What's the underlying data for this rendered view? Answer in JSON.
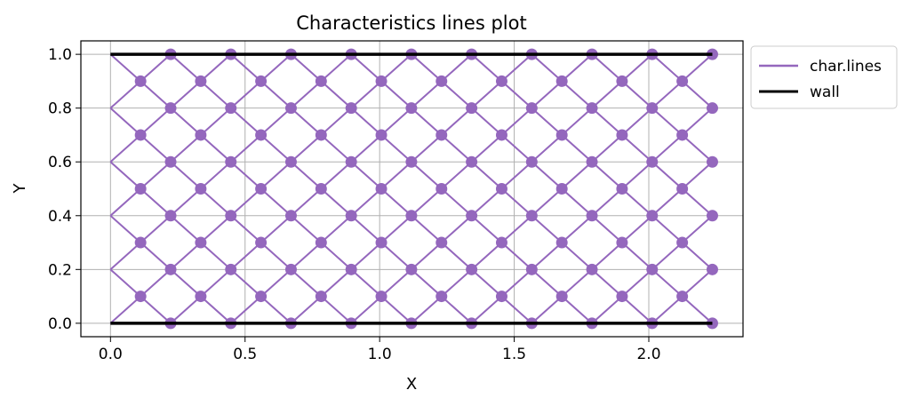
{
  "chart_data": {
    "type": "line",
    "title": "Characteristics lines plot",
    "xlabel": "X",
    "ylabel": "Y",
    "xlim": [
      -0.11,
      2.35
    ],
    "ylim": [
      -0.05,
      1.05
    ],
    "xticks": [
      0.0,
      0.5,
      1.0,
      1.5,
      2.0
    ],
    "xtick_labels": [
      "0.0",
      "0.5",
      "1.0",
      "1.5",
      "2.0"
    ],
    "yticks": [
      0.0,
      0.2,
      0.4,
      0.6,
      0.8,
      1.0
    ],
    "ytick_labels": [
      "0.0",
      "0.2",
      "0.4",
      "0.6",
      "0.8",
      "1.0"
    ],
    "grid": true,
    "legend": {
      "placement": "outside-top-right",
      "entries": [
        "char.lines",
        "wall"
      ]
    },
    "mesh": {
      "x_step": 0.1118,
      "y_step": 0.1,
      "columns": 21,
      "rows": 11,
      "note_pattern": "nodes where column index and row index have equal parity"
    },
    "series": [
      {
        "name": "char.lines",
        "color": "#9467bd",
        "marker": "circle"
      },
      {
        "name": "wall",
        "color": "#000000",
        "segments": [
          {
            "x": [
              0.0,
              2.236
            ],
            "y": [
              1.0,
              1.0
            ]
          },
          {
            "x": [
              0.0,
              2.236
            ],
            "y": [
              0.0,
              0.0
            ]
          }
        ]
      }
    ]
  }
}
